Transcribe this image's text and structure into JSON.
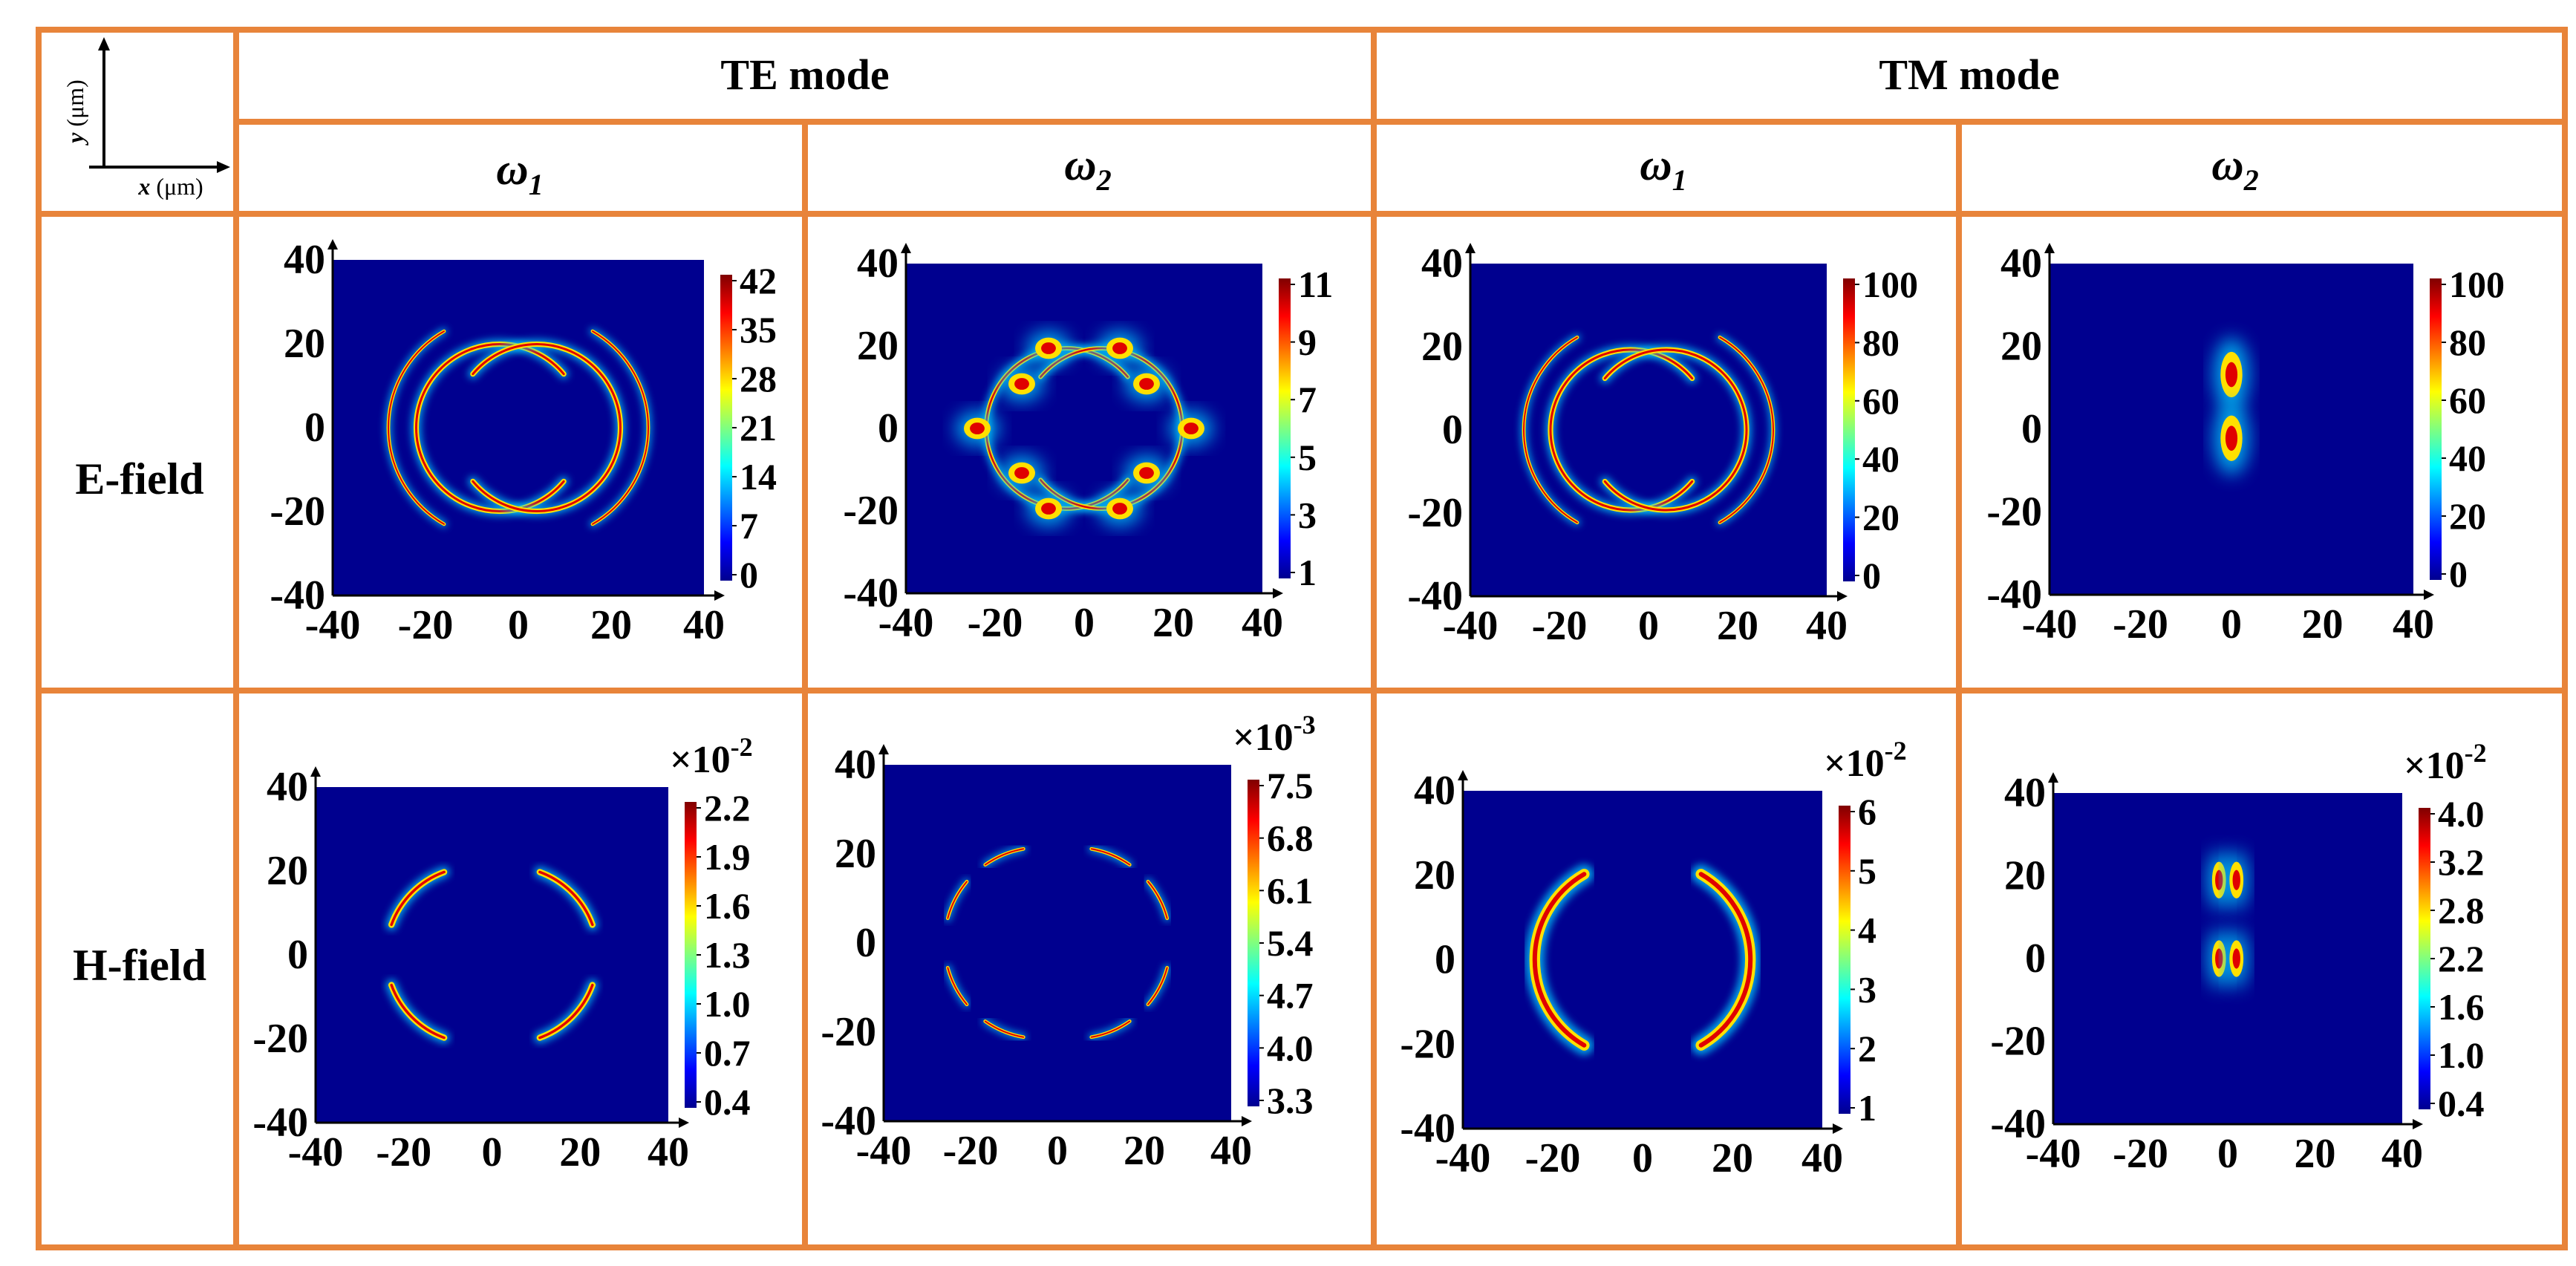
{
  "corner": {
    "x_label": "x",
    "y_label": "y",
    "unit": "(μm)"
  },
  "modes": [
    {
      "label": "TE mode"
    },
    {
      "label": "TM mode"
    }
  ],
  "columns": [
    {
      "omega": "ω",
      "sub": "1"
    },
    {
      "omega": "ω",
      "sub": "2"
    },
    {
      "omega": "ω",
      "sub": "1"
    },
    {
      "omega": "ω",
      "sub": "2"
    }
  ],
  "rows": [
    {
      "label": "E-field"
    },
    {
      "label": "H-field"
    }
  ],
  "colors": {
    "border": "#E8843A",
    "background": "#00008F"
  },
  "chart_data": [
    {
      "type": "heatmap",
      "field": "E",
      "mode": "TE",
      "frequency": "ω1",
      "x_ticks": [
        "-40",
        "-20",
        "0",
        "20",
        "40"
      ],
      "y_ticks": [
        "40",
        "20",
        "0",
        "-20",
        "-40"
      ],
      "xlim": [
        -40,
        40
      ],
      "ylim": [
        -40,
        40
      ],
      "colorbar": {
        "ticks": [
          "42",
          "35",
          "28",
          "21",
          "14",
          "7",
          "0"
        ],
        "multiplier": ""
      },
      "pattern": "split-rings"
    },
    {
      "type": "heatmap",
      "field": "E",
      "mode": "TE",
      "frequency": "ω2",
      "x_ticks": [
        "-40",
        "-20",
        "0",
        "20",
        "40"
      ],
      "y_ticks": [
        "40",
        "20",
        "0",
        "-20",
        "-40"
      ],
      "xlim": [
        -40,
        40
      ],
      "ylim": [
        -40,
        40
      ],
      "colorbar": {
        "ticks": [
          "11",
          "9",
          "7",
          "5",
          "3",
          "1"
        ],
        "multiplier": ""
      },
      "pattern": "split-rings-dotted"
    },
    {
      "type": "heatmap",
      "field": "E",
      "mode": "TM",
      "frequency": "ω1",
      "x_ticks": [
        "-40",
        "-20",
        "0",
        "20",
        "40"
      ],
      "y_ticks": [
        "40",
        "20",
        "0",
        "-20",
        "-40"
      ],
      "xlim": [
        -40,
        40
      ],
      "ylim": [
        -40,
        40
      ],
      "colorbar": {
        "ticks": [
          "100",
          "80",
          "60",
          "40",
          "20",
          "0"
        ],
        "multiplier": ""
      },
      "pattern": "split-rings"
    },
    {
      "type": "heatmap",
      "field": "E",
      "mode": "TM",
      "frequency": "ω2",
      "x_ticks": [
        "-40",
        "-20",
        "0",
        "20",
        "40"
      ],
      "y_ticks": [
        "40",
        "20",
        "0",
        "-20",
        "-40"
      ],
      "xlim": [
        -40,
        40
      ],
      "ylim": [
        -40,
        40
      ],
      "colorbar": {
        "ticks": [
          "100",
          "80",
          "60",
          "40",
          "20",
          "0"
        ],
        "multiplier": ""
      },
      "pattern": "central-spots"
    },
    {
      "type": "heatmap",
      "field": "H",
      "mode": "TE",
      "frequency": "ω1",
      "x_ticks": [
        "-40",
        "-20",
        "0",
        "20",
        "40"
      ],
      "y_ticks": [
        "40",
        "20",
        "0",
        "-20",
        "-40"
      ],
      "xlim": [
        -40,
        40
      ],
      "ylim": [
        -40,
        40
      ],
      "colorbar": {
        "ticks": [
          "2.2",
          "1.9",
          "1.6",
          "1.3",
          "1.0",
          "0.7",
          "0.4"
        ],
        "multiplier": "×10",
        "exponent": "-2"
      },
      "pattern": "arc-quarters"
    },
    {
      "type": "heatmap",
      "field": "H",
      "mode": "TE",
      "frequency": "ω2",
      "x_ticks": [
        "-40",
        "-20",
        "0",
        "20",
        "40"
      ],
      "y_ticks": [
        "40",
        "20",
        "0",
        "-20",
        "-40"
      ],
      "xlim": [
        -40,
        40
      ],
      "ylim": [
        -40,
        40
      ],
      "colorbar": {
        "ticks": [
          "7.5",
          "6.8",
          "6.1",
          "5.4",
          "4.7",
          "4.0",
          "3.3"
        ],
        "multiplier": "×10",
        "exponent": "-3"
      },
      "pattern": "arc-segments"
    },
    {
      "type": "heatmap",
      "field": "H",
      "mode": "TM",
      "frequency": "ω1",
      "x_ticks": [
        "-40",
        "-20",
        "0",
        "20",
        "40"
      ],
      "y_ticks": [
        "40",
        "20",
        "0",
        "-20",
        "-40"
      ],
      "xlim": [
        -40,
        40
      ],
      "ylim": [
        -40,
        40
      ],
      "colorbar": {
        "ticks": [
          "6",
          "5",
          "4",
          "3",
          "2",
          "1"
        ],
        "multiplier": "×10",
        "exponent": "-2"
      },
      "pattern": "crescents"
    },
    {
      "type": "heatmap",
      "field": "H",
      "mode": "TM",
      "frequency": "ω2",
      "x_ticks": [
        "-40",
        "-20",
        "0",
        "20",
        "40"
      ],
      "y_ticks": [
        "40",
        "20",
        "0",
        "-20",
        "-40"
      ],
      "xlim": [
        -40,
        40
      ],
      "ylim": [
        -40,
        40
      ],
      "colorbar": {
        "ticks": [
          "4.0",
          "3.2",
          "2.8",
          "2.2",
          "1.6",
          "1.0",
          "0.4"
        ],
        "multiplier": "×10",
        "exponent": "-2"
      },
      "pattern": "central-pairs"
    }
  ]
}
